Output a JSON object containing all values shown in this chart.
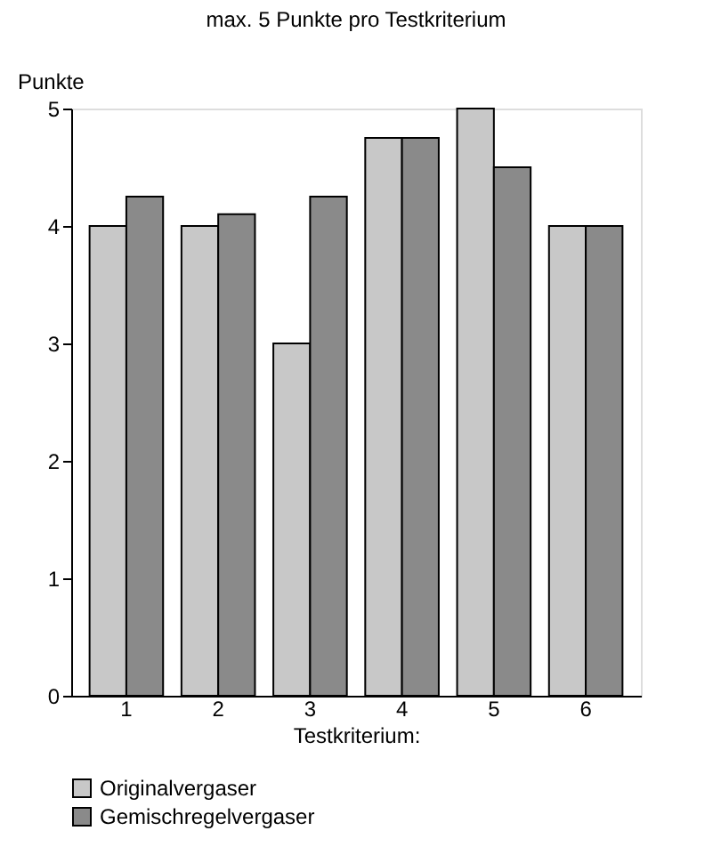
{
  "chart_data": {
    "type": "bar",
    "title": "max. 5 Punkte pro Testkriterium",
    "ylabel": "Punkte",
    "xlabel": "Testkriterium:",
    "categories": [
      "1",
      "2",
      "3",
      "4",
      "5",
      "6"
    ],
    "series": [
      {
        "name": "Originalvergaser",
        "color": "#c8c8c8",
        "values": [
          4,
          4,
          3,
          4.75,
          5,
          4
        ]
      },
      {
        "name": "Gemischregelvergaser",
        "color": "#8a8a8a",
        "values": [
          4.25,
          4.1,
          4.25,
          4.75,
          4.5,
          4
        ]
      }
    ],
    "ylim": [
      0,
      5
    ],
    "yticks": [
      0,
      1,
      2,
      3,
      4,
      5
    ],
    "grid": false,
    "legend": "bottom left"
  }
}
